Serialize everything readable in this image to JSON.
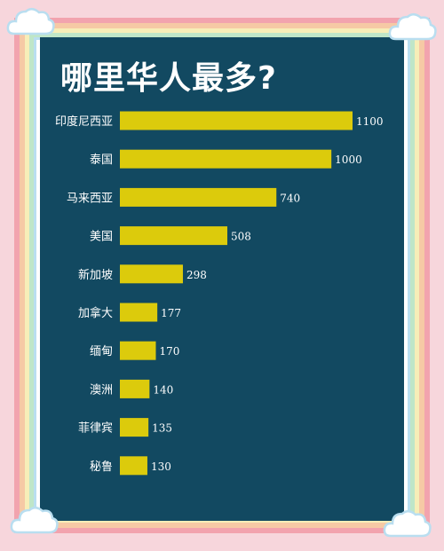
{
  "title": "哪里华人最多?",
  "colors": {
    "background": "#f7d6dc",
    "panel": "#124961",
    "bar": "#dccb0c",
    "text": "#ffffff"
  },
  "chart_data": {
    "type": "bar",
    "orientation": "horizontal",
    "title": "哪里华人最多?",
    "categories": [
      "印度尼西亚",
      "泰国",
      "马来西亚",
      "美国",
      "新加坡",
      "加拿大",
      "缅甸",
      "澳洲",
      "菲律宾",
      "秘鲁"
    ],
    "values": [
      1100,
      1000,
      740,
      508,
      298,
      177,
      170,
      140,
      135,
      130
    ],
    "value_labels": [
      "1100",
      "1000",
      "740",
      "508",
      "298",
      "177",
      "170",
      "140",
      "135",
      "130"
    ],
    "xlabel": "",
    "ylabel": "",
    "xlim": [
      0,
      1100
    ],
    "grid": false,
    "legend": "none"
  }
}
